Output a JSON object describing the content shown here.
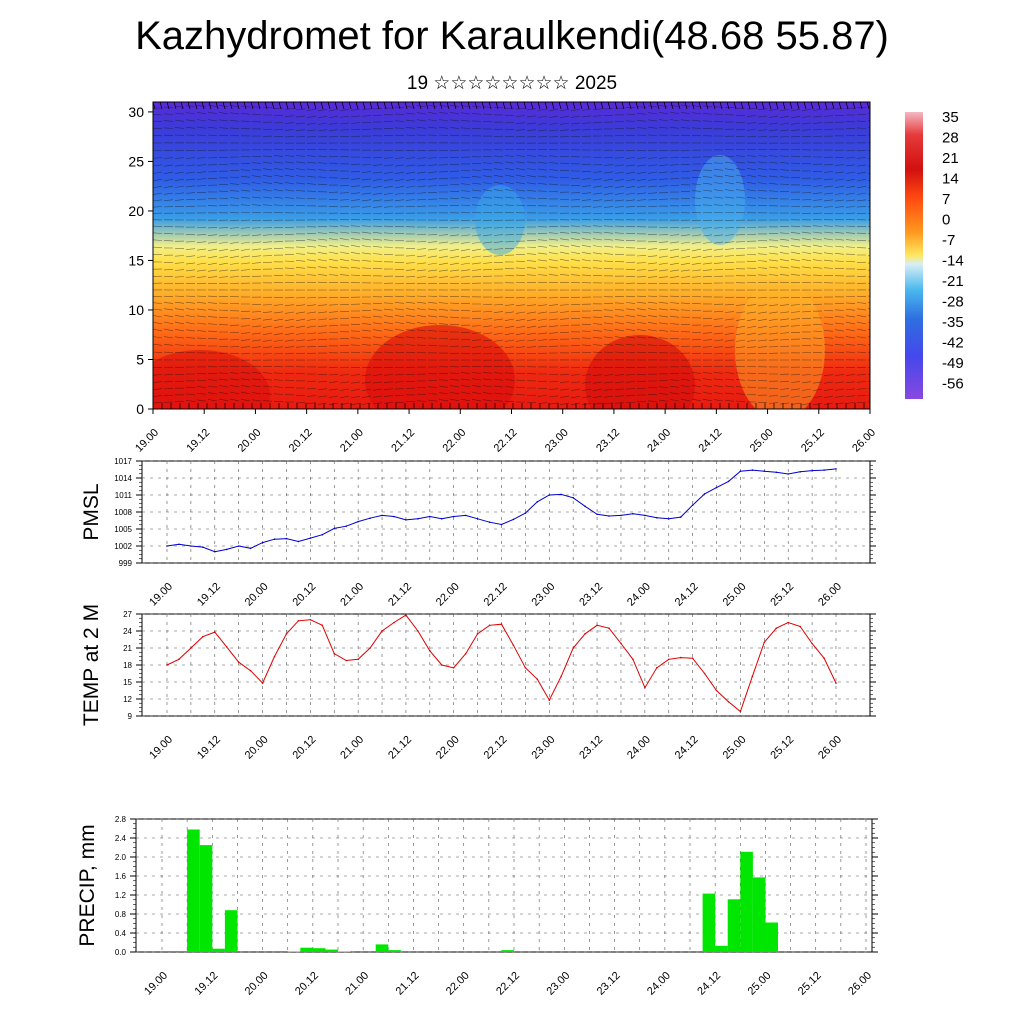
{
  "title": "Kazhydromet for Karaulkendi(48.68 55.87)",
  "subtitle": "19 ☆☆☆☆☆☆☆☆ 2025",
  "colors": {
    "pmsl_line": "#0000cc",
    "temp_line": "#dd0000",
    "precip_bar": "#00e600"
  },
  "colorbar_labels": [
    "35",
    "28",
    "21",
    "14",
    "7",
    "0",
    "-7",
    "-14",
    "-21",
    "-28",
    "-35",
    "-42",
    "-49",
    "-56"
  ],
  "chart_data": [
    {
      "type": "heatmap",
      "title": "",
      "ylabel": "",
      "ylim": [
        0,
        31
      ],
      "yticks": [
        "0",
        "5",
        "10",
        "15",
        "20",
        "25",
        "30"
      ],
      "x_ticklabels": [
        "19.00",
        "19.12",
        "20.00",
        "20.12",
        "21.00",
        "21.12",
        "22.00",
        "22.12",
        "23.00",
        "23.12",
        "24.00",
        "24.12",
        "25.00",
        "25.12",
        "26.00"
      ],
      "colorbar_range": [
        -56,
        35
      ],
      "wind_barbs": true
    },
    {
      "type": "line",
      "ylabel": "PMSL",
      "ylim": [
        999,
        1017
      ],
      "yticks": [
        "999",
        "1002",
        "1005",
        "1008",
        "1011",
        "1014",
        "1017"
      ],
      "x_ticklabels": [
        "19.00",
        "19.12",
        "20.00",
        "20.12",
        "21.00",
        "21.12",
        "22.00",
        "22.12",
        "23.00",
        "23.12",
        "24.00",
        "24.12",
        "25.00",
        "25.12",
        "26.00"
      ],
      "x": [
        0,
        3,
        6,
        9,
        12,
        15,
        18,
        21,
        24,
        27,
        30,
        33,
        36,
        39,
        42,
        45,
        48,
        51,
        54,
        57,
        60,
        63,
        66,
        69,
        72,
        75,
        78,
        81,
        84,
        87,
        90,
        93,
        96,
        99,
        102,
        105,
        108,
        111,
        114,
        117,
        120,
        123,
        126,
        129,
        132,
        135,
        138,
        141,
        144,
        147,
        150,
        153,
        156,
        159,
        162,
        165,
        168
      ],
      "series": [
        {
          "values": [
            1002.0,
            1002.3,
            1002.0,
            1001.8,
            1001.0,
            1001.4,
            1002.0,
            1001.6,
            1002.6,
            1003.2,
            1003.3,
            1002.8,
            1003.4,
            1004.0,
            1005.1,
            1005.5,
            1006.3,
            1006.9,
            1007.4,
            1007.2,
            1006.6,
            1006.8,
            1007.2,
            1006.8,
            1007.2,
            1007.4,
            1006.8,
            1006.2,
            1005.8,
            1006.7,
            1007.8,
            1009.8,
            1011.0,
            1011.1,
            1010.5,
            1009.0,
            1007.6,
            1007.3,
            1007.4,
            1007.7,
            1007.4,
            1007.0,
            1006.8,
            1007.1,
            1009.2,
            1011.2,
            1012.3,
            1013.4,
            1015.2,
            1015.4,
            1015.2,
            1015.0,
            1014.7,
            1015.1,
            1015.3,
            1015.4,
            1015.6
          ]
        }
      ]
    },
    {
      "type": "line",
      "ylabel": "TEMP at 2 M",
      "ylim": [
        9,
        27
      ],
      "yticks": [
        "9",
        "12",
        "15",
        "18",
        "21",
        "24",
        "27"
      ],
      "x_ticklabels": [
        "19.00",
        "19.12",
        "20.00",
        "20.12",
        "21.00",
        "21.12",
        "22.00",
        "22.12",
        "23.00",
        "23.12",
        "24.00",
        "24.12",
        "25.00",
        "25.12",
        "26.00"
      ],
      "x": [
        0,
        3,
        6,
        9,
        12,
        15,
        18,
        21,
        24,
        27,
        30,
        33,
        36,
        39,
        42,
        45,
        48,
        51,
        54,
        57,
        60,
        63,
        66,
        69,
        72,
        75,
        78,
        81,
        84,
        87,
        90,
        93,
        96,
        99,
        102,
        105,
        108,
        111,
        114,
        117,
        120,
        123,
        126,
        129,
        132,
        135,
        138,
        141,
        144,
        147,
        150,
        153,
        156,
        159,
        162,
        165,
        168
      ],
      "series": [
        {
          "values": [
            18.0,
            19.0,
            21.0,
            23.0,
            23.8,
            21.2,
            18.5,
            17.0,
            14.8,
            19.5,
            23.5,
            25.8,
            26.0,
            25.0,
            20.0,
            18.8,
            19.0,
            21.0,
            24.0,
            25.5,
            26.8,
            24.0,
            20.5,
            18.0,
            17.5,
            20.0,
            23.5,
            25.0,
            25.2,
            21.5,
            17.5,
            15.5,
            11.8,
            16.0,
            21.0,
            23.5,
            25.0,
            24.5,
            21.8,
            19.0,
            14.0,
            17.5,
            19.0,
            19.3,
            19.2,
            16.5,
            13.5,
            11.5,
            9.8,
            16.0,
            22.0,
            24.5,
            25.5,
            24.8,
            21.8,
            19.2,
            14.8
          ]
        }
      ]
    },
    {
      "type": "bar",
      "ylabel": "PRECIP, mm",
      "ylim": [
        0,
        2.8
      ],
      "yticks": [
        "0.0",
        "0.4",
        "0.8",
        "1.2",
        "1.6",
        "2.0",
        "2.4",
        "2.8"
      ],
      "x_ticklabels": [
        "19.00",
        "19.12",
        "20.00",
        "20.12",
        "21.00",
        "21.12",
        "22.00",
        "22.12",
        "23.00",
        "23.12",
        "24.00",
        "24.12",
        "25.00",
        "25.12",
        "26.00"
      ],
      "x": [
        0,
        3,
        6,
        9,
        12,
        15,
        18,
        21,
        24,
        27,
        30,
        33,
        36,
        39,
        42,
        45,
        48,
        51,
        54,
        57,
        60,
        63,
        66,
        69,
        72,
        75,
        78,
        81,
        84,
        87,
        90,
        93,
        96,
        99,
        102,
        105,
        108,
        111,
        114,
        117,
        120,
        123,
        126,
        129,
        132,
        135,
        138,
        141,
        144,
        147,
        150,
        153,
        156,
        159,
        162,
        165
      ],
      "series": [
        {
          "values": [
            0.02,
            0.02,
            2.58,
            2.25,
            0.07,
            0.88,
            0,
            0,
            0,
            0.02,
            0.01,
            0.09,
            0.08,
            0.05,
            0.01,
            0,
            0,
            0.16,
            0.04,
            0,
            0,
            0,
            0,
            0,
            0,
            0,
            0,
            0.04,
            0,
            0,
            0,
            0,
            0,
            0,
            0,
            0,
            0,
            0,
            0,
            0,
            0,
            0,
            0,
            1.23,
            0.13,
            1.11,
            2.11,
            1.57,
            0.62,
            0,
            0,
            0,
            0,
            0,
            0,
            0
          ]
        }
      ]
    }
  ]
}
